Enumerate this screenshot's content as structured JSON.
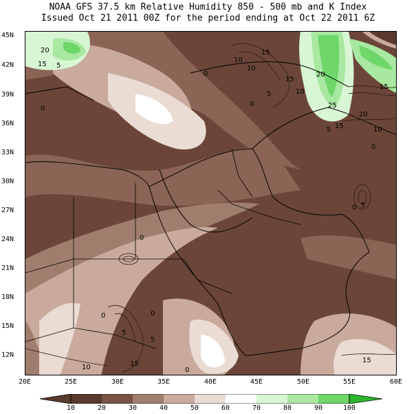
{
  "header": {
    "line1": "NOAA GFS 37.5 km Relative Humidity 850 - 500 mb and K Index",
    "line2": "Issued Oct 21 2011 00Z for the period ending at Oct 22 2011 6Z"
  },
  "axes": {
    "lat_labels": [
      "45N",
      "42N",
      "39N",
      "36N",
      "33N",
      "30N",
      "27N",
      "24N",
      "21N",
      "18N",
      "15N",
      "12N"
    ],
    "lon_labels": [
      "20E",
      "25E",
      "30E",
      "35E",
      "40E",
      "45E",
      "50E",
      "55E",
      "60E"
    ]
  },
  "colorbar": {
    "labels": [
      "10",
      "20",
      "30",
      "40",
      "50",
      "60",
      "70",
      "80",
      "90",
      "100"
    ],
    "colors": [
      "#5a3a2e",
      "#7a5444",
      "#a07e6e",
      "#c9aa9c",
      "#eadbd3",
      "#ffffff",
      "#d8f5d4",
      "#a8e8a0",
      "#6fd66a",
      "#2fb82f"
    ]
  },
  "contour_labels": [
    "20",
    "15",
    "5",
    "0",
    "10",
    "10",
    "15",
    "0",
    "5",
    "0",
    "20",
    "15",
    "10",
    "25",
    "15",
    "20",
    "10",
    "5",
    "15",
    "0",
    "5",
    "0",
    "0",
    "0",
    "0",
    "5",
    "5",
    "10",
    "15",
    "0",
    "15"
  ],
  "palette": {
    "dry_dark": "#5e3d31",
    "dry_mid": "#8a6454",
    "moist_light": "#d9c0b4",
    "wet_green": "#55cc55"
  }
}
